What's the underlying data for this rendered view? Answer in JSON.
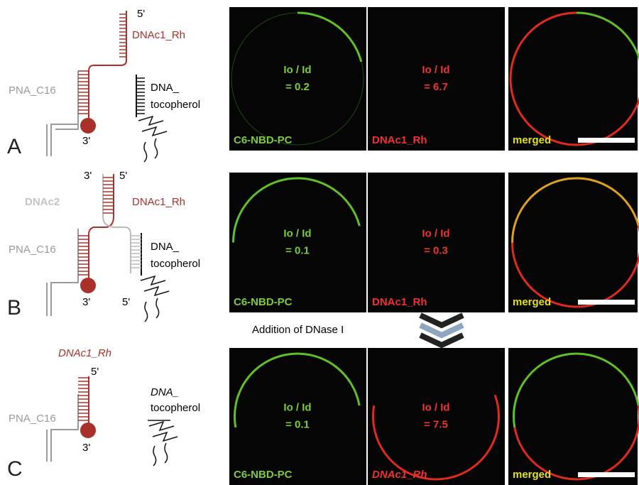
{
  "panels": [
    {
      "letter": "A",
      "top_5": "5'",
      "dna_rh": "DNAc1_Rh",
      "pna": "PNA_C16",
      "toc_1": "DNA_",
      "toc_2": "tocopherol",
      "bottom_3": "3'",
      "images": [
        {
          "ratio_label": "Io / Id",
          "ratio": "= 0.2",
          "caption": "C6-NBD-PC"
        },
        {
          "ratio_label": "Io / Id",
          "ratio": "= 6.7",
          "caption": "DNAc1_Rh"
        },
        {
          "caption": "merged"
        }
      ]
    },
    {
      "letter": "B",
      "top_3": "3'",
      "top_5": "5'",
      "dnac2": "DNAc2",
      "dna_rh": "DNAc1_Rh",
      "pna": "PNA_C16",
      "toc_1": "DNA_",
      "toc_2": "tocopherol",
      "bottom_3": "3'",
      "bottom_5": "5'",
      "images": [
        {
          "ratio_label": "Io / Id",
          "ratio": "= 0.1",
          "caption": "C6-NBD-PC"
        },
        {
          "ratio_label": "Io / Id",
          "ratio": "= 0.3",
          "caption": "DNAc1_Rh"
        },
        {
          "caption": "merged"
        }
      ]
    },
    {
      "letter": "C",
      "dna_rh": "DNAc1_Rh",
      "top_5": "5'",
      "pna": "PNA_C16",
      "toc_1": "DNA_",
      "toc_2": "tocopherol",
      "bottom_3": "3'",
      "images": [
        {
          "ratio_label": "Io / Id",
          "ratio": "= 0.1",
          "caption": "C6-NBD-PC"
        },
        {
          "ratio_label": "Io / Id",
          "ratio": "= 7.5",
          "caption": "DNAc1_Rh"
        },
        {
          "caption": "merged"
        }
      ]
    }
  ],
  "transition": "Addition of DNase I"
}
